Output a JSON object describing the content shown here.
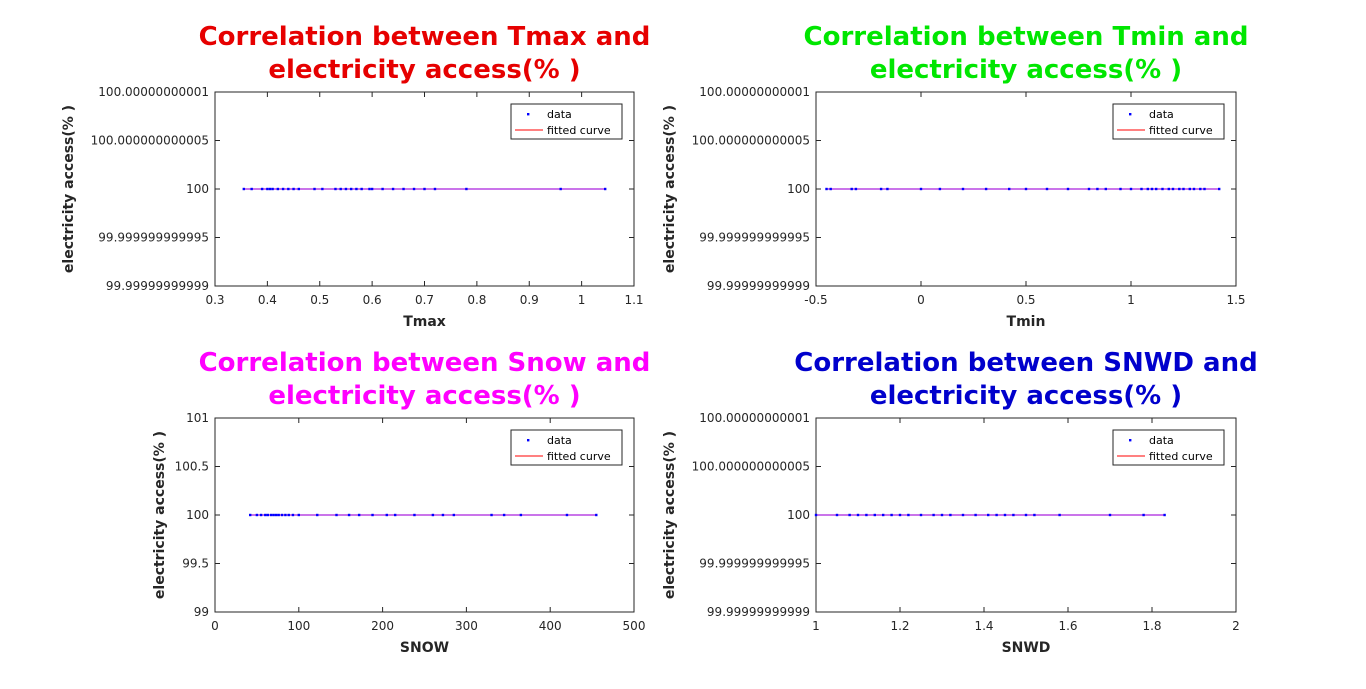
{
  "figure": {
    "legend_labels": {
      "data": "data",
      "fit": "fitted curve"
    },
    "colors": {
      "data_marker": "#0000ff",
      "fit_line": "#ff0000",
      "overlap_line": "#a020f0",
      "axis": "#262626",
      "tick_text": "#262626",
      "label_text": "#262626"
    }
  },
  "chart_data": [
    {
      "type": "scatter",
      "title_lines": [
        "Correlation between Tmax and",
        "electricity access(% )"
      ],
      "title_color": "#e60000",
      "xlabel": "Tmax",
      "ylabel": "electricity access(% )",
      "xlim": [
        0.3,
        1.1
      ],
      "ylim": [
        99.99999999999,
        100.00000000001
      ],
      "xticks": [
        0.3,
        0.4,
        0.5,
        0.6,
        0.7,
        0.8,
        0.9,
        1,
        1.1
      ],
      "xtick_labels": [
        "0.3",
        "0.4",
        "0.5",
        "0.6",
        "0.7",
        "0.8",
        "0.9",
        "1",
        "1.1"
      ],
      "yticks": [
        99.99999999999,
        99.999999999995,
        100,
        100.000000000005,
        100.00000000001
      ],
      "ytick_labels": [
        "99.99999999999",
        "99.999999999995",
        "100",
        "100.000000000005",
        "100.00000000001"
      ],
      "legend": "top-right",
      "grid": false,
      "series": [
        {
          "name": "data",
          "mode": "markers",
          "x": [
            0.355,
            0.37,
            0.39,
            0.4,
            0.405,
            0.41,
            0.42,
            0.43,
            0.44,
            0.45,
            0.46,
            0.49,
            0.505,
            0.53,
            0.54,
            0.55,
            0.56,
            0.57,
            0.58,
            0.595,
            0.6,
            0.62,
            0.64,
            0.66,
            0.68,
            0.7,
            0.72,
            0.78,
            0.96,
            1.045
          ],
          "y": [
            100,
            100,
            100,
            100,
            100,
            100,
            100,
            100,
            100,
            100,
            100,
            100,
            100,
            100,
            100,
            100,
            100,
            100,
            100,
            100,
            100,
            100,
            100,
            100,
            100,
            100,
            100,
            100,
            100,
            100
          ]
        },
        {
          "name": "fitted curve",
          "mode": "line",
          "x": [
            0.355,
            1.045
          ],
          "y": [
            100,
            100
          ]
        }
      ]
    },
    {
      "type": "scatter",
      "title_lines": [
        "Correlation between Tmin and",
        "electricity access(% )"
      ],
      "title_color": "#00e600",
      "xlabel": "Tmin",
      "ylabel": "electricity access(% )",
      "xlim": [
        -0.5,
        1.5
      ],
      "ylim": [
        99.99999999999,
        100.00000000001
      ],
      "xticks": [
        -0.5,
        0,
        0.5,
        1,
        1.5
      ],
      "xtick_labels": [
        "-0.5",
        "0",
        "0.5",
        "1",
        "1.5"
      ],
      "yticks": [
        99.99999999999,
        99.999999999995,
        100,
        100.000000000005,
        100.00000000001
      ],
      "ytick_labels": [
        "99.99999999999",
        "99.999999999995",
        "100",
        "100.000000000005",
        "100.00000000001"
      ],
      "legend": "top-right",
      "grid": false,
      "series": [
        {
          "name": "data",
          "mode": "markers",
          "x": [
            -0.45,
            -0.43,
            -0.33,
            -0.31,
            -0.19,
            -0.16,
            0.0,
            0.09,
            0.2,
            0.31,
            0.42,
            0.5,
            0.6,
            0.7,
            0.8,
            0.84,
            0.88,
            0.95,
            1.0,
            1.05,
            1.08,
            1.1,
            1.12,
            1.15,
            1.18,
            1.2,
            1.23,
            1.25,
            1.28,
            1.3,
            1.33,
            1.35,
            1.42
          ],
          "y": [
            100,
            100,
            100,
            100,
            100,
            100,
            100,
            100,
            100,
            100,
            100,
            100,
            100,
            100,
            100,
            100,
            100,
            100,
            100,
            100,
            100,
            100,
            100,
            100,
            100,
            100,
            100,
            100,
            100,
            100,
            100,
            100,
            100
          ]
        },
        {
          "name": "fitted curve",
          "mode": "line",
          "x": [
            -0.45,
            1.42
          ],
          "y": [
            100,
            100
          ]
        }
      ]
    },
    {
      "type": "scatter",
      "title_lines": [
        "Correlation between Snow and",
        "electricity access(% )"
      ],
      "title_color": "#ff00ff",
      "xlabel": "SNOW",
      "ylabel": "electricity access(% )",
      "xlim": [
        0,
        500
      ],
      "ylim": [
        99,
        101
      ],
      "xticks": [
        0,
        100,
        200,
        300,
        400,
        500
      ],
      "xtick_labels": [
        "0",
        "100",
        "200",
        "300",
        "400",
        "500"
      ],
      "yticks": [
        99,
        99.5,
        100,
        100.5,
        101
      ],
      "ytick_labels": [
        "99",
        "99.5",
        "100",
        "100.5",
        "101"
      ],
      "legend": "top-right",
      "grid": false,
      "series": [
        {
          "name": "data",
          "mode": "markers",
          "x": [
            42,
            50,
            55,
            60,
            63,
            67,
            70,
            73,
            76,
            80,
            84,
            88,
            93,
            100,
            122,
            145,
            160,
            172,
            188,
            205,
            215,
            238,
            260,
            272,
            285,
            330,
            345,
            365,
            420,
            455
          ],
          "y": [
            100,
            100,
            100,
            100,
            100,
            100,
            100,
            100,
            100,
            100,
            100,
            100,
            100,
            100,
            100,
            100,
            100,
            100,
            100,
            100,
            100,
            100,
            100,
            100,
            100,
            100,
            100,
            100,
            100,
            100
          ]
        },
        {
          "name": "fitted curve",
          "mode": "line",
          "x": [
            42,
            455
          ],
          "y": [
            100,
            100
          ]
        }
      ]
    },
    {
      "type": "scatter",
      "title_lines": [
        "Correlation between SNWD and",
        "electricity access(% )"
      ],
      "title_color": "#0000cc",
      "xlabel": "SNWD",
      "ylabel": "electricity access(% )",
      "xlim": [
        1,
        2
      ],
      "ylim": [
        99.99999999999,
        100.00000000001
      ],
      "xticks": [
        1,
        1.2,
        1.4,
        1.6,
        1.8,
        2
      ],
      "xtick_labels": [
        "1",
        "1.2",
        "1.4",
        "1.6",
        "1.8",
        "2"
      ],
      "yticks": [
        99.99999999999,
        99.999999999995,
        100,
        100.000000000005,
        100.00000000001
      ],
      "ytick_labels": [
        "99.99999999999",
        "99.999999999995",
        "100",
        "100.000000000005",
        "100.00000000001"
      ],
      "legend": "top-right",
      "grid": false,
      "series": [
        {
          "name": "data",
          "mode": "markers",
          "x": [
            1.0,
            1.05,
            1.08,
            1.1,
            1.12,
            1.14,
            1.16,
            1.18,
            1.2,
            1.22,
            1.25,
            1.28,
            1.3,
            1.32,
            1.35,
            1.38,
            1.41,
            1.43,
            1.45,
            1.47,
            1.5,
            1.52,
            1.58,
            1.7,
            1.78,
            1.83
          ],
          "y": [
            100,
            100,
            100,
            100,
            100,
            100,
            100,
            100,
            100,
            100,
            100,
            100,
            100,
            100,
            100,
            100,
            100,
            100,
            100,
            100,
            100,
            100,
            100,
            100,
            100,
            100
          ]
        },
        {
          "name": "fitted curve",
          "mode": "line",
          "x": [
            1.0,
            1.83
          ],
          "y": [
            100,
            100
          ]
        }
      ]
    }
  ]
}
